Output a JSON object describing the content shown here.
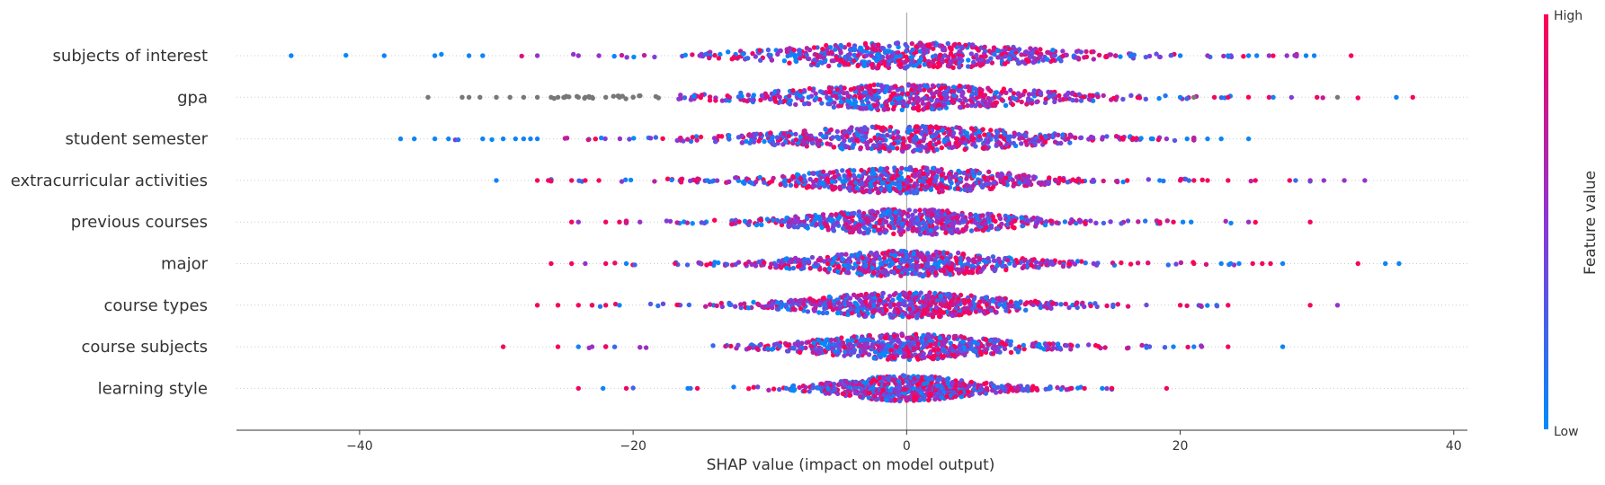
{
  "chart_data": {
    "type": "scatter",
    "subtype": "shap-beeswarm",
    "xlabel": "SHAP value (impact on model output)",
    "xlim": [
      -49,
      41
    ],
    "xticks": [
      -40,
      -20,
      0,
      20,
      40
    ],
    "xtick_labels": [
      "−40",
      "−20",
      "0",
      "20",
      "40"
    ],
    "grid": false,
    "colorbar": {
      "label": "Feature value",
      "high_label": "High",
      "low_label": "Low",
      "low_color": "#008bfb",
      "high_color": "#ff0052",
      "missing_color": "#777777"
    },
    "features": [
      {
        "name": "subjects of interest",
        "range": [
          -45,
          32.5
        ],
        "spread": 7,
        "outliers": [
          [
            -45,
            0.15
          ],
          [
            -38.2,
            0.2
          ],
          [
            -34.5,
            0.1
          ],
          [
            -32,
            0.15
          ],
          [
            -31,
            0.1
          ],
          [
            -27,
            0.6
          ],
          [
            -24,
            0.7
          ],
          [
            -22.5,
            0.4
          ],
          [
            20,
            0.2
          ],
          [
            22,
            0.55
          ],
          [
            23.5,
            0.3
          ],
          [
            25,
            0.2
          ],
          [
            25.6,
            0.15
          ],
          [
            26.5,
            0.4
          ],
          [
            27.8,
            0.7
          ],
          [
            28.5,
            0.6
          ],
          [
            29.2,
            0.3
          ],
          [
            29.8,
            0.2
          ],
          [
            32.5,
            0.95
          ]
        ],
        "outlier_colors": [
          "low",
          "low",
          "low",
          "low",
          "low",
          "mid",
          "mid",
          "mid",
          "low",
          "mid",
          "low",
          "low",
          "low",
          "mid",
          "mid",
          "mid",
          "low",
          "low",
          "high"
        ]
      },
      {
        "name": "gpa",
        "range": [
          -35,
          37
        ],
        "spread": 6.5,
        "outliers": [
          [
            -35,
            0
          ],
          [
            -32.5,
            0
          ],
          [
            -32,
            0
          ],
          [
            -31.2,
            0
          ],
          [
            -30,
            0
          ],
          [
            -29,
            0
          ],
          [
            -28,
            0
          ],
          [
            -27,
            0
          ],
          [
            -26,
            0
          ],
          [
            -25.5,
            0
          ],
          [
            -25,
            0
          ],
          [
            -24,
            0
          ],
          [
            -23.5,
            0
          ],
          [
            -23,
            0
          ],
          [
            -22,
            0
          ],
          [
            -21,
            0
          ],
          [
            -20,
            0
          ],
          [
            20,
            0.3
          ],
          [
            21,
            0
          ],
          [
            22.5,
            0.8
          ],
          [
            23.5,
            0.9
          ],
          [
            26.5,
            0.9
          ],
          [
            26.8,
            0.3
          ],
          [
            30,
            0.9
          ],
          [
            31.5,
            0
          ],
          [
            35.8,
            0.1
          ],
          [
            37,
            0.95
          ]
        ],
        "outlier_colors": [
          "gray",
          "gray",
          "gray",
          "gray",
          "gray",
          "gray",
          "gray",
          "gray",
          "gray",
          "gray",
          "gray",
          "gray",
          "gray",
          "gray",
          "gray",
          "gray",
          "gray",
          "low",
          "gray",
          "high",
          "high",
          "high",
          "low",
          "high",
          "gray",
          "low",
          "high"
        ]
      },
      {
        "name": "student semester",
        "range": [
          -37,
          25
        ],
        "spread": 6.5,
        "outliers": [
          [
            -37,
            0.05
          ],
          [
            -36,
            0.05
          ],
          [
            -34.5,
            0.05
          ],
          [
            -33.5,
            0.05
          ],
          [
            -31,
            0.05
          ],
          [
            -29.5,
            0.05
          ],
          [
            -28.6,
            0.05
          ],
          [
            -28,
            0.05
          ],
          [
            -27.5,
            0.1
          ],
          [
            -27,
            0.1
          ],
          [
            18,
            0.2
          ],
          [
            19,
            0.5
          ],
          [
            20.5,
            0.15
          ],
          [
            22,
            0.1
          ],
          [
            23,
            0.1
          ],
          [
            25,
            0.2
          ]
        ],
        "outlier_colors": [
          "low",
          "low",
          "low",
          "low",
          "low",
          "low",
          "low",
          "low",
          "low",
          "low",
          "low",
          "mid",
          "low",
          "low",
          "low",
          "low"
        ]
      },
      {
        "name": "extracurricular activities",
        "range": [
          -30,
          33.5
        ],
        "spread": 5.5,
        "outliers": [
          [
            -30,
            0.1
          ],
          [
            -27,
            0.9
          ],
          [
            -26.2,
            0.9
          ],
          [
            -24.5,
            0.8
          ],
          [
            -23.5,
            0.85
          ],
          [
            -22.5,
            0.9
          ],
          [
            18.5,
            0.3
          ],
          [
            20,
            0.85
          ],
          [
            21,
            0.8
          ],
          [
            22,
            0.9
          ],
          [
            23.5,
            0.9
          ],
          [
            25.5,
            0.85
          ],
          [
            28,
            0.85
          ],
          [
            29.5,
            0.7
          ],
          [
            30.5,
            0.6
          ],
          [
            32,
            0.4
          ],
          [
            33.5,
            0.6
          ]
        ],
        "outlier_colors": [
          "low",
          "high",
          "high",
          "high",
          "high",
          "high",
          "low",
          "high",
          "high",
          "high",
          "high",
          "high",
          "high",
          "mid",
          "mid",
          "mid",
          "mid"
        ]
      },
      {
        "name": "previous courses",
        "range": [
          -24.5,
          29.5
        ],
        "spread": 5,
        "outliers": [
          [
            -24.5,
            0.9
          ],
          [
            -24,
            0.7
          ],
          [
            -22,
            0.8
          ],
          [
            -21,
            0.85
          ],
          [
            -19.5,
            0.6
          ],
          [
            18.5,
            0.85
          ],
          [
            19.5,
            0.85
          ],
          [
            20.2,
            0.2
          ],
          [
            20.8,
            0.15
          ],
          [
            25,
            0.6
          ],
          [
            29.5,
            0.95
          ]
        ],
        "outlier_colors": [
          "high",
          "mid",
          "high",
          "high",
          "mid",
          "high",
          "high",
          "low",
          "low",
          "mid",
          "high"
        ]
      },
      {
        "name": "major",
        "range": [
          -26,
          36
        ],
        "spread": 5,
        "outliers": [
          [
            -26,
            0.9
          ],
          [
            -24.5,
            0.95
          ],
          [
            -23.5,
            0.5
          ],
          [
            -22,
            0.85
          ],
          [
            -20.5,
            0.2
          ],
          [
            21,
            0.9
          ],
          [
            23,
            0.2
          ],
          [
            23.7,
            0.15
          ],
          [
            24.3,
            0.3
          ],
          [
            25.3,
            0.8
          ],
          [
            26,
            0.9
          ],
          [
            26.6,
            0.8
          ],
          [
            27.5,
            0.1
          ],
          [
            33,
            0.9
          ],
          [
            35,
            0.2
          ],
          [
            36,
            0.2
          ]
        ],
        "outlier_colors": [
          "high",
          "high",
          "mid",
          "high",
          "low",
          "high",
          "low",
          "low",
          "low",
          "high",
          "high",
          "high",
          "low",
          "high",
          "low",
          "low"
        ]
      },
      {
        "name": "course types",
        "range": [
          -27,
          31.5
        ],
        "spread": 5,
        "outliers": [
          [
            -27,
            0.9
          ],
          [
            -25.5,
            0.95
          ],
          [
            -24,
            0.9
          ],
          [
            -23,
            0.9
          ],
          [
            -22,
            0.85
          ],
          [
            -21,
            0.2
          ],
          [
            20,
            0.9
          ],
          [
            23.5,
            0.9
          ],
          [
            29.5,
            0.9
          ],
          [
            31.5,
            0.6
          ]
        ],
        "outlier_colors": [
          "high",
          "high",
          "high",
          "high",
          "high",
          "low",
          "high",
          "high",
          "high",
          "mid"
        ]
      },
      {
        "name": "course subjects",
        "range": [
          -29.5,
          27.5
        ],
        "spread": 4.8,
        "outliers": [
          [
            -29.5,
            0.9
          ],
          [
            -25.5,
            0.9
          ],
          [
            -24,
            0.2
          ],
          [
            -23,
            0.6
          ],
          [
            -22,
            0.8
          ],
          [
            19.5,
            0.3
          ],
          [
            21,
            0.2
          ],
          [
            23.5,
            0.9
          ],
          [
            27.5,
            0.1
          ]
        ],
        "outlier_colors": [
          "high",
          "high",
          "low",
          "mid",
          "high",
          "low",
          "low",
          "high",
          "low"
        ]
      },
      {
        "name": "learning style",
        "range": [
          -24,
          19
        ],
        "spread": 3.5,
        "outliers": [
          [
            -24,
            0.9
          ],
          [
            -22.2,
            0.1
          ],
          [
            -20.5,
            0.9
          ],
          [
            -16,
            0.3
          ],
          [
            -15.3,
            0.9
          ],
          [
            9.5,
            0.9
          ],
          [
            10.5,
            0.2
          ],
          [
            12,
            0.8
          ],
          [
            13,
            0.9
          ],
          [
            14.3,
            0.2
          ],
          [
            19,
            0.9
          ]
        ],
        "outlier_colors": [
          "high",
          "low",
          "high",
          "low",
          "high",
          "high",
          "low",
          "high",
          "high",
          "low",
          "high"
        ]
      }
    ]
  }
}
